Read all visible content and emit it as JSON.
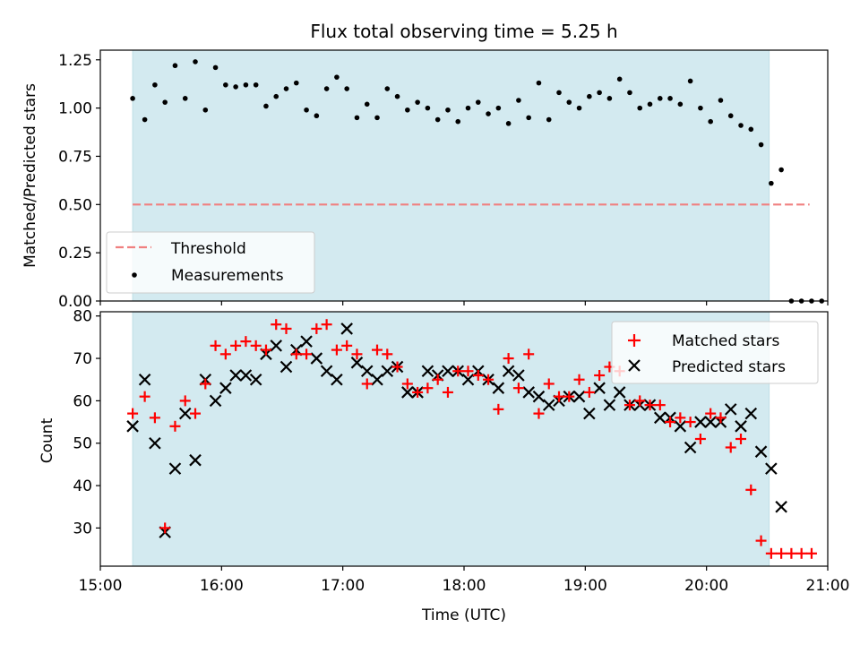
{
  "chart_data": [
    {
      "type": "scatter",
      "title": "Flux total observing time = 5.25 h",
      "xlabel": "",
      "ylabel": "Matched/Predicted stars",
      "ylim": [
        0,
        1.3
      ],
      "xlim": [
        "15:00",
        "21:00"
      ],
      "x_ticks": [
        "15:00",
        "16:00",
        "17:00",
        "18:00",
        "19:00",
        "20:00",
        "21:00"
      ],
      "y_ticks": [
        "0.00",
        "0.25",
        "0.50",
        "0.75",
        "1.00",
        "1.25"
      ],
      "shaded_span": [
        "15:16",
        "20:31"
      ],
      "shaded_color": "#d3eaf0",
      "threshold": {
        "name": "Threshold",
        "value": 0.5,
        "x_range": [
          "15:16",
          "20:51"
        ],
        "color": "#f08080"
      },
      "series": [
        {
          "name": "Measurements",
          "color": "#000000",
          "points": [
            [
              "15:16",
              1.05
            ],
            [
              "15:22",
              0.94
            ],
            [
              "15:27",
              1.12
            ],
            [
              "15:32",
              1.03
            ],
            [
              "15:37",
              1.22
            ],
            [
              "15:42",
              1.05
            ],
            [
              "15:47",
              1.24
            ],
            [
              "15:52",
              0.99
            ],
            [
              "15:57",
              1.21
            ],
            [
              "16:02",
              1.12
            ],
            [
              "16:07",
              1.11
            ],
            [
              "16:12",
              1.12
            ],
            [
              "16:17",
              1.12
            ],
            [
              "16:22",
              1.01
            ],
            [
              "16:27",
              1.06
            ],
            [
              "16:32",
              1.1
            ],
            [
              "16:37",
              1.13
            ],
            [
              "16:42",
              0.99
            ],
            [
              "16:47",
              0.96
            ],
            [
              "16:52",
              1.1
            ],
            [
              "16:57",
              1.16
            ],
            [
              "17:02",
              1.1
            ],
            [
              "17:07",
              0.95
            ],
            [
              "17:12",
              1.02
            ],
            [
              "17:17",
              0.95
            ],
            [
              "17:22",
              1.1
            ],
            [
              "17:27",
              1.06
            ],
            [
              "17:32",
              0.99
            ],
            [
              "17:37",
              1.03
            ],
            [
              "17:42",
              1.0
            ],
            [
              "17:47",
              0.94
            ],
            [
              "17:52",
              0.99
            ],
            [
              "17:57",
              0.93
            ],
            [
              "18:02",
              1.0
            ],
            [
              "18:07",
              1.03
            ],
            [
              "18:12",
              0.97
            ],
            [
              "18:17",
              1.0
            ],
            [
              "18:22",
              0.92
            ],
            [
              "18:27",
              1.04
            ],
            [
              "18:32",
              0.95
            ],
            [
              "18:37",
              1.13
            ],
            [
              "18:42",
              0.94
            ],
            [
              "18:47",
              1.08
            ],
            [
              "18:52",
              1.03
            ],
            [
              "18:57",
              1.0
            ],
            [
              "19:02",
              1.06
            ],
            [
              "19:07",
              1.08
            ],
            [
              "19:12",
              1.05
            ],
            [
              "19:17",
              1.15
            ],
            [
              "19:22",
              1.08
            ],
            [
              "19:27",
              1.0
            ],
            [
              "19:32",
              1.02
            ],
            [
              "19:37",
              1.05
            ],
            [
              "19:42",
              1.05
            ],
            [
              "19:47",
              1.02
            ],
            [
              "19:52",
              1.14
            ],
            [
              "19:57",
              1.0
            ],
            [
              "20:02",
              0.93
            ],
            [
              "20:07",
              1.04
            ],
            [
              "20:12",
              0.96
            ],
            [
              "20:17",
              0.91
            ],
            [
              "20:22",
              0.89
            ],
            [
              "20:27",
              0.81
            ],
            [
              "20:32",
              0.61
            ],
            [
              "20:37",
              0.68
            ],
            [
              "20:42",
              0.0
            ],
            [
              "20:47",
              0.0
            ],
            [
              "20:52",
              0.0
            ],
            [
              "20:57",
              0.0
            ]
          ]
        }
      ],
      "legend": {
        "position": "lower left",
        "entries": [
          "Threshold",
          "Measurements"
        ]
      }
    },
    {
      "type": "scatter",
      "title": "",
      "xlabel": "Time (UTC)",
      "ylabel": "Count",
      "ylim": [
        21,
        81
      ],
      "xlim": [
        "15:00",
        "21:00"
      ],
      "x_ticks": [
        "15:00",
        "16:00",
        "17:00",
        "18:00",
        "19:00",
        "20:00",
        "21:00"
      ],
      "y_ticks": [
        "30",
        "40",
        "50",
        "60",
        "70",
        "80"
      ],
      "shaded_span": [
        "15:16",
        "20:31"
      ],
      "shaded_color": "#d3eaf0",
      "series": [
        {
          "name": "Matched stars",
          "marker": "plus",
          "color": "#ff0000",
          "points": [
            [
              "15:16",
              57
            ],
            [
              "15:22",
              61
            ],
            [
              "15:27",
              56
            ],
            [
              "15:32",
              30
            ],
            [
              "15:37",
              54
            ],
            [
              "15:42",
              60
            ],
            [
              "15:47",
              57
            ],
            [
              "15:52",
              64
            ],
            [
              "15:57",
              73
            ],
            [
              "16:02",
              71
            ],
            [
              "16:07",
              73
            ],
            [
              "16:12",
              74
            ],
            [
              "16:17",
              73
            ],
            [
              "16:22",
              72
            ],
            [
              "16:27",
              78
            ],
            [
              "16:32",
              77
            ],
            [
              "16:37",
              71
            ],
            [
              "16:42",
              71
            ],
            [
              "16:47",
              77
            ],
            [
              "16:52",
              78
            ],
            [
              "16:57",
              72
            ],
            [
              "17:02",
              73
            ],
            [
              "17:07",
              71
            ],
            [
              "17:12",
              64
            ],
            [
              "17:17",
              72
            ],
            [
              "17:22",
              71
            ],
            [
              "17:27",
              68
            ],
            [
              "17:32",
              64
            ],
            [
              "17:37",
              62
            ],
            [
              "17:42",
              63
            ],
            [
              "17:47",
              65
            ],
            [
              "17:52",
              62
            ],
            [
              "17:57",
              67
            ],
            [
              "18:02",
              67
            ],
            [
              "18:07",
              66
            ],
            [
              "18:12",
              65
            ],
            [
              "18:17",
              58
            ],
            [
              "18:22",
              70
            ],
            [
              "18:27",
              63
            ],
            [
              "18:32",
              71
            ],
            [
              "18:37",
              57
            ],
            [
              "18:42",
              64
            ],
            [
              "18:47",
              61
            ],
            [
              "18:52",
              61
            ],
            [
              "18:57",
              65
            ],
            [
              "19:02",
              62
            ],
            [
              "19:07",
              66
            ],
            [
              "19:12",
              68
            ],
            [
              "19:17",
              67
            ],
            [
              "19:22",
              59
            ],
            [
              "19:27",
              60
            ],
            [
              "19:32",
              59
            ],
            [
              "19:37",
              59
            ],
            [
              "19:42",
              55
            ],
            [
              "19:47",
              56
            ],
            [
              "19:52",
              55
            ],
            [
              "19:57",
              51
            ],
            [
              "20:02",
              57
            ],
            [
              "20:07",
              56
            ],
            [
              "20:12",
              49
            ],
            [
              "20:17",
              51
            ],
            [
              "20:22",
              39
            ],
            [
              "20:27",
              27
            ],
            [
              "20:32",
              24
            ],
            [
              "20:37",
              24
            ],
            [
              "20:42",
              24
            ],
            [
              "20:47",
              24
            ],
            [
              "20:52",
              24
            ]
          ]
        },
        {
          "name": "Predicted stars",
          "marker": "x",
          "color": "#000000",
          "points": [
            [
              "15:16",
              54
            ],
            [
              "15:22",
              65
            ],
            [
              "15:27",
              50
            ],
            [
              "15:32",
              29
            ],
            [
              "15:37",
              44
            ],
            [
              "15:42",
              57
            ],
            [
              "15:47",
              46
            ],
            [
              "15:52",
              65
            ],
            [
              "15:57",
              60
            ],
            [
              "16:02",
              63
            ],
            [
              "16:07",
              66
            ],
            [
              "16:12",
              66
            ],
            [
              "16:17",
              65
            ],
            [
              "16:22",
              71
            ],
            [
              "16:27",
              73
            ],
            [
              "16:32",
              68
            ],
            [
              "16:37",
              72
            ],
            [
              "16:42",
              74
            ],
            [
              "16:47",
              70
            ],
            [
              "16:52",
              67
            ],
            [
              "16:57",
              65
            ],
            [
              "17:02",
              77
            ],
            [
              "17:07",
              69
            ],
            [
              "17:12",
              67
            ],
            [
              "17:17",
              65
            ],
            [
              "17:22",
              67
            ],
            [
              "17:27",
              68
            ],
            [
              "17:32",
              62
            ],
            [
              "17:37",
              62
            ],
            [
              "17:42",
              67
            ],
            [
              "17:47",
              66
            ],
            [
              "17:52",
              67
            ],
            [
              "17:57",
              67
            ],
            [
              "18:02",
              65
            ],
            [
              "18:07",
              67
            ],
            [
              "18:12",
              65
            ],
            [
              "18:17",
              63
            ],
            [
              "18:22",
              67
            ],
            [
              "18:27",
              66
            ],
            [
              "18:32",
              62
            ],
            [
              "18:37",
              61
            ],
            [
              "18:42",
              59
            ],
            [
              "18:47",
              60
            ],
            [
              "18:52",
              61
            ],
            [
              "18:57",
              61
            ],
            [
              "19:02",
              57
            ],
            [
              "19:07",
              63
            ],
            [
              "19:12",
              59
            ],
            [
              "19:17",
              62
            ],
            [
              "19:22",
              59
            ],
            [
              "19:27",
              59
            ],
            [
              "19:32",
              59
            ],
            [
              "19:37",
              56
            ],
            [
              "19:42",
              56
            ],
            [
              "19:47",
              54
            ],
            [
              "19:52",
              49
            ],
            [
              "19:57",
              55
            ],
            [
              "20:02",
              55
            ],
            [
              "20:07",
              55
            ],
            [
              "20:12",
              58
            ],
            [
              "20:17",
              54
            ],
            [
              "20:22",
              57
            ],
            [
              "20:27",
              48
            ],
            [
              "20:32",
              44
            ],
            [
              "20:37",
              35
            ]
          ]
        }
      ],
      "legend": {
        "position": "upper right",
        "entries": [
          "Matched stars",
          "Predicted stars"
        ]
      }
    }
  ]
}
